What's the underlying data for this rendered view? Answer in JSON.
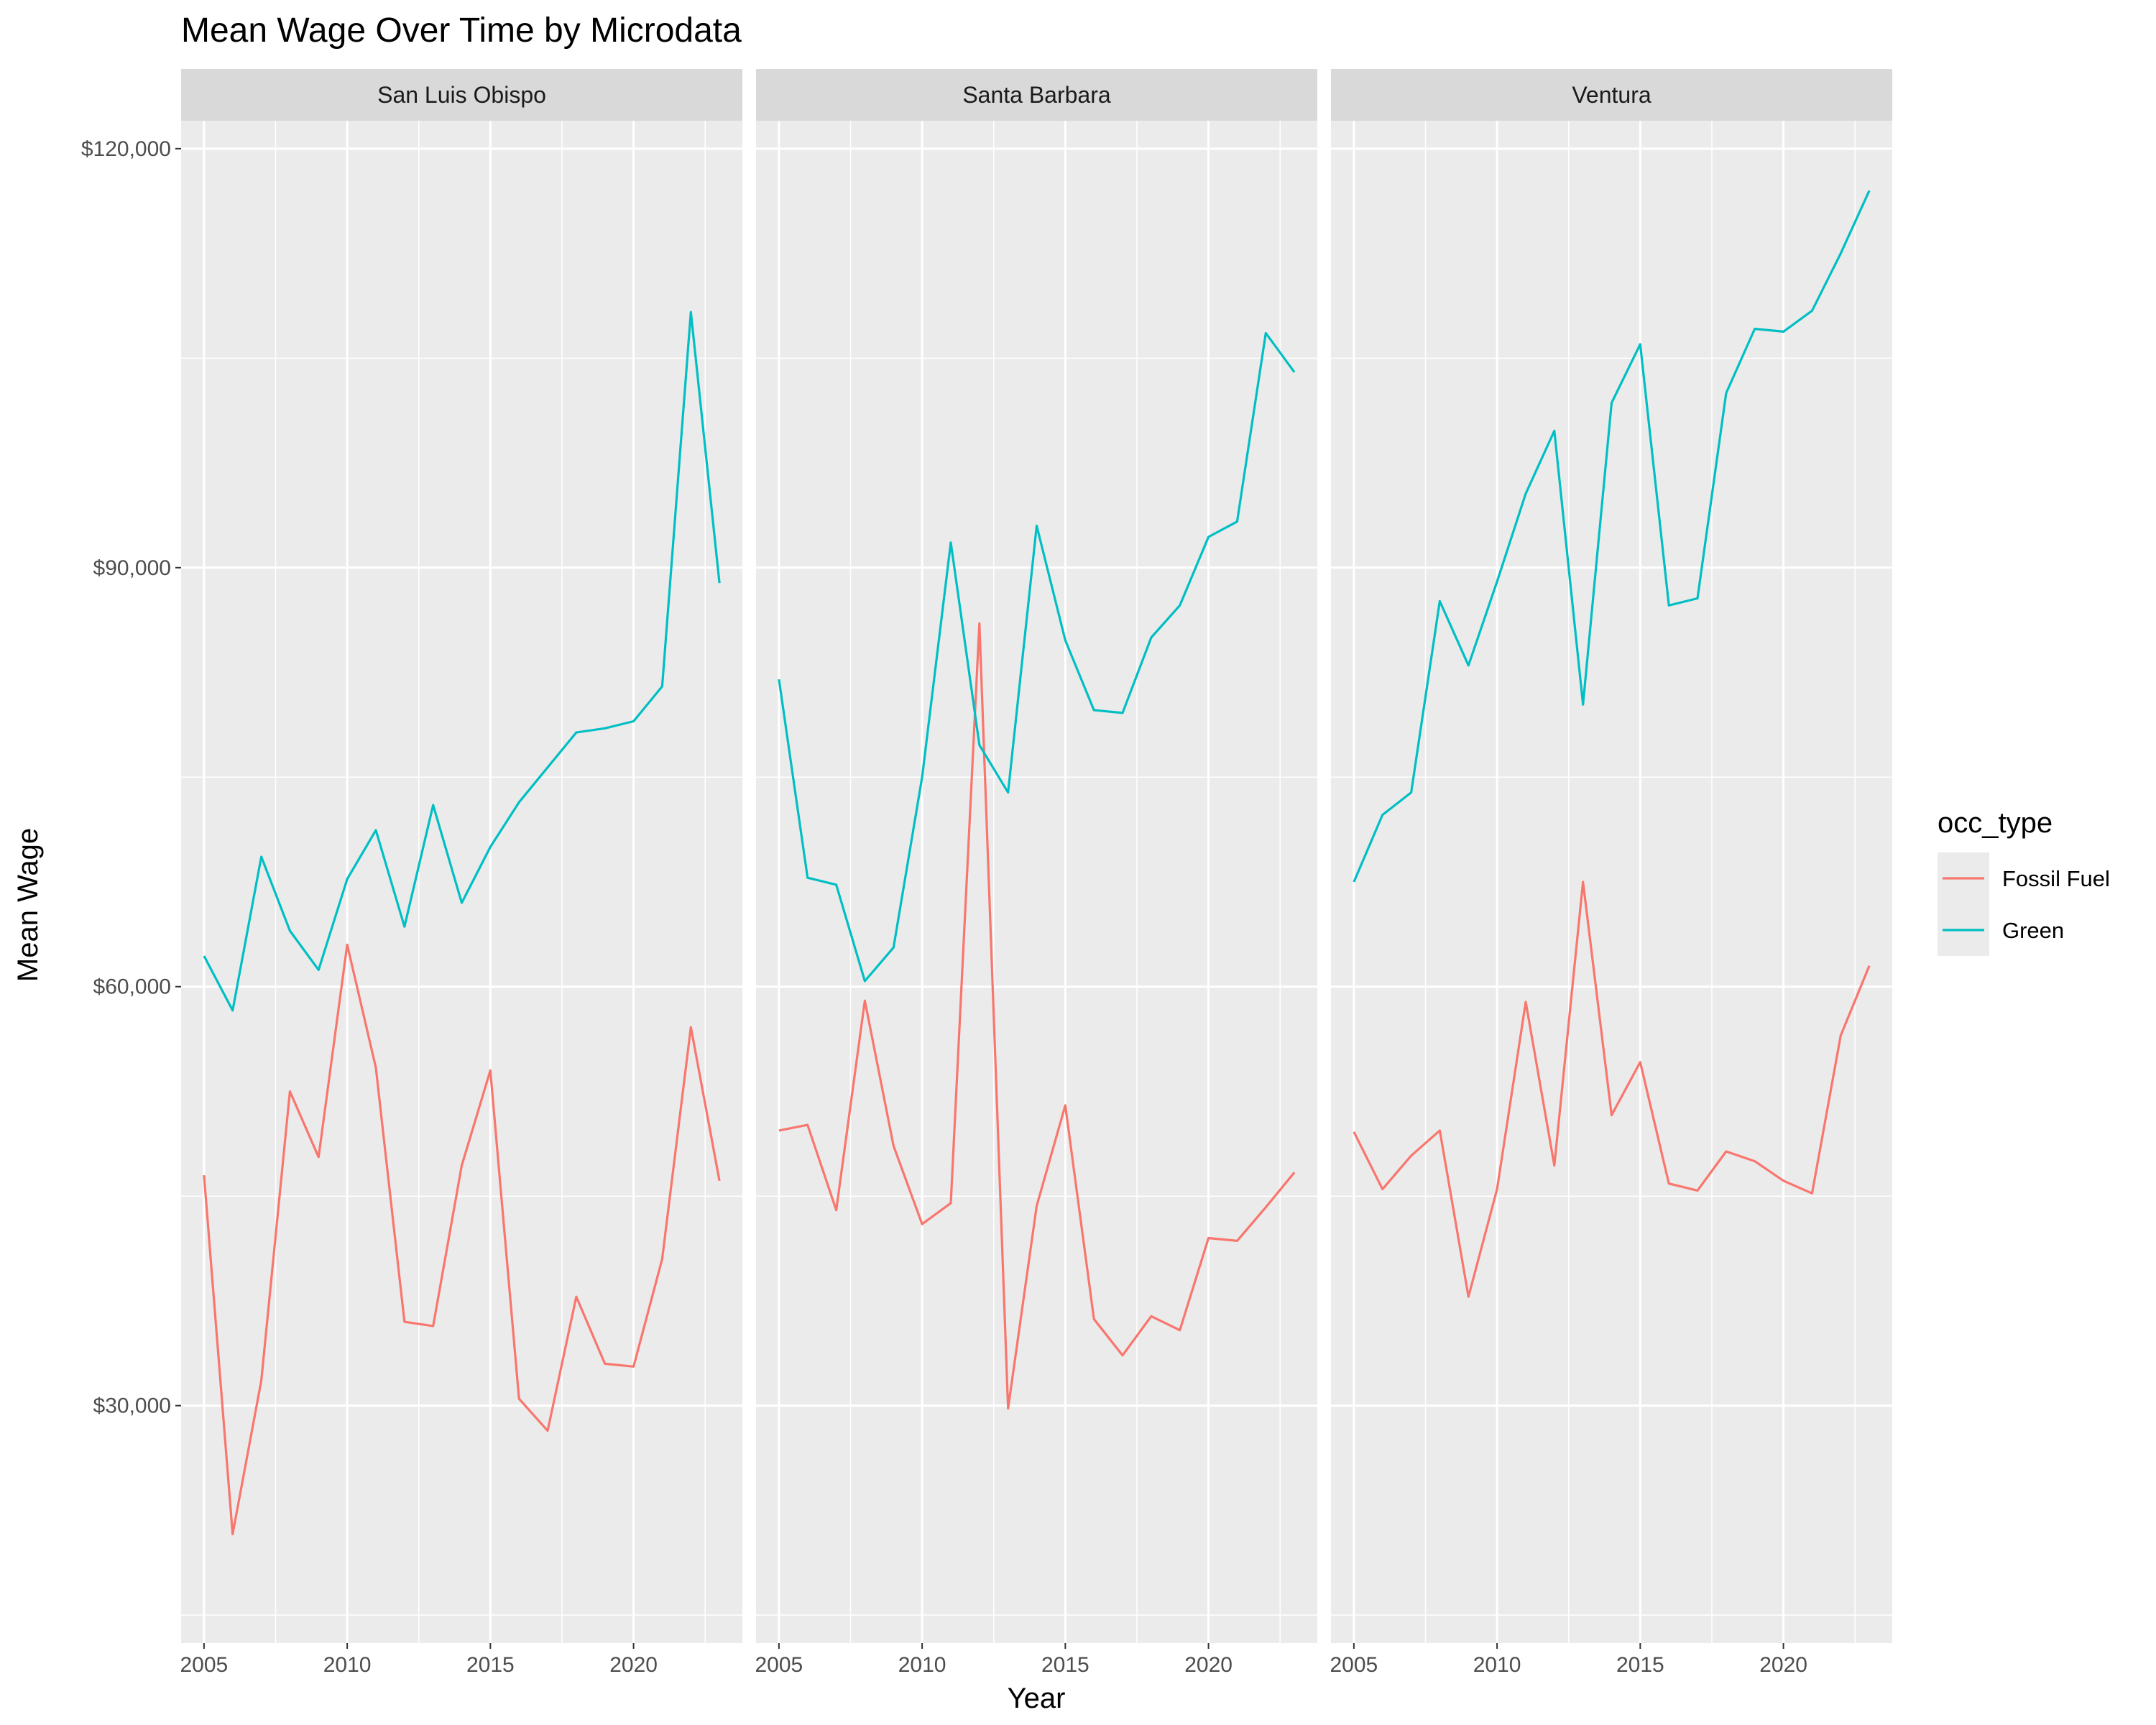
{
  "chart_data": {
    "type": "line",
    "title": "Mean Wage Over Time by Microdata",
    "xlabel": "Year",
    "ylabel": "Mean Wage",
    "xlim": [
      2004.2,
      2023.8
    ],
    "ylim": [
      13000,
      122000
    ],
    "x_ticks": [
      2005,
      2010,
      2015,
      2020
    ],
    "x_tick_labels": [
      "2005",
      "2010",
      "2015",
      "2020"
    ],
    "y_ticks": [
      30000,
      60000,
      90000,
      120000
    ],
    "y_tick_labels": [
      "$30,000",
      "$60,000",
      "$90,000",
      "$120,000"
    ],
    "legend": {
      "title": "occ_type",
      "position": "right",
      "entries": [
        {
          "name": "Fossil Fuel",
          "color": "#F8766D"
        },
        {
          "name": "Green",
          "color": "#00BFC4"
        }
      ]
    },
    "x": [
      2005,
      2006,
      2007,
      2008,
      2009,
      2010,
      2011,
      2012,
      2013,
      2014,
      2015,
      2016,
      2017,
      2018,
      2019,
      2020,
      2021,
      2022,
      2023
    ],
    "facets": [
      {
        "label": "San Luis Obispo",
        "series": [
          {
            "name": "Fossil Fuel",
            "values": [
              46500,
              20800,
              31800,
              52500,
              47800,
              63000,
              54200,
              36000,
              35700,
              47200,
              54000,
              30500,
              28200,
              37800,
              33000,
              32800,
              40500,
              57100,
              46100
            ]
          },
          {
            "name": "Green",
            "values": [
              62200,
              58300,
              69300,
              64000,
              61200,
              67700,
              71200,
              64300,
              73000,
              66000,
              70000,
              73200,
              75700,
              78200,
              78500,
              79000,
              81500,
              108300,
              88900
            ]
          }
        ]
      },
      {
        "label": "Santa Barbara",
        "series": [
          {
            "name": "Fossil Fuel",
            "values": [
              49700,
              50100,
              44000,
              59000,
              48600,
              43000,
              44500,
              86000,
              29800,
              44300,
              51500,
              36200,
              33600,
              36400,
              35400,
              42000,
              41800,
              44200,
              46700
            ]
          },
          {
            "name": "Green",
            "values": [
              82000,
              67800,
              67300,
              60400,
              62800,
              75000,
              91800,
              77300,
              73900,
              93000,
              84800,
              79800,
              79600,
              85000,
              87300,
              92200,
              93300,
              106800,
              104000
            ]
          }
        ]
      },
      {
        "label": "Ventura",
        "series": [
          {
            "name": "Fossil Fuel",
            "values": [
              49600,
              45500,
              47900,
              49700,
              37800,
              45500,
              58900,
              47200,
              67500,
              50800,
              54600,
              45900,
              45400,
              48200,
              47500,
              46100,
              45200,
              56500,
              61500
            ]
          },
          {
            "name": "Green",
            "values": [
              67500,
              72300,
              73900,
              87600,
              83000,
              89000,
              95300,
              99800,
              80200,
              101800,
              106000,
              87300,
              87800,
              102500,
              107100,
              106900,
              108400,
              112500,
              117000
            ]
          }
        ]
      }
    ]
  }
}
